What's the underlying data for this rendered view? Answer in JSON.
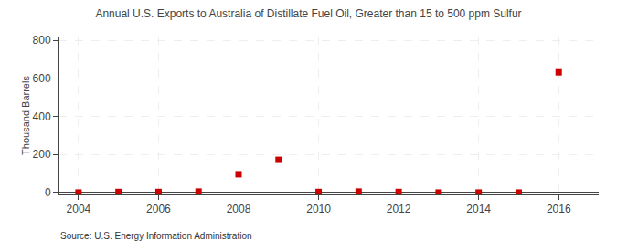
{
  "chart_data": {
    "type": "scatter",
    "title": "Annual U.S. Exports to Australia of Distillate Fuel Oil, Greater than 15 to 500 ppm Sulfur",
    "ylabel": "Thousand Barrels",
    "annotations": [
      "Source: U.S. Energy Information Administration"
    ],
    "x": [
      2004,
      2005,
      2006,
      2007,
      2008,
      2009,
      2010,
      2011,
      2012,
      2013,
      2014,
      2015,
      2016
    ],
    "values": [
      0,
      3,
      3,
      5,
      96,
      172,
      3,
      5,
      3,
      0,
      0,
      0,
      632
    ],
    "xlim": [
      2003.5,
      2017.0
    ],
    "ylim": [
      -10,
      820
    ],
    "xticks": [
      2004,
      2006,
      2008,
      2010,
      2012,
      2014,
      2016
    ],
    "yticks": [
      0,
      200,
      400,
      600,
      800
    ],
    "color": "#cc0000",
    "marker": "square",
    "grid": true
  }
}
